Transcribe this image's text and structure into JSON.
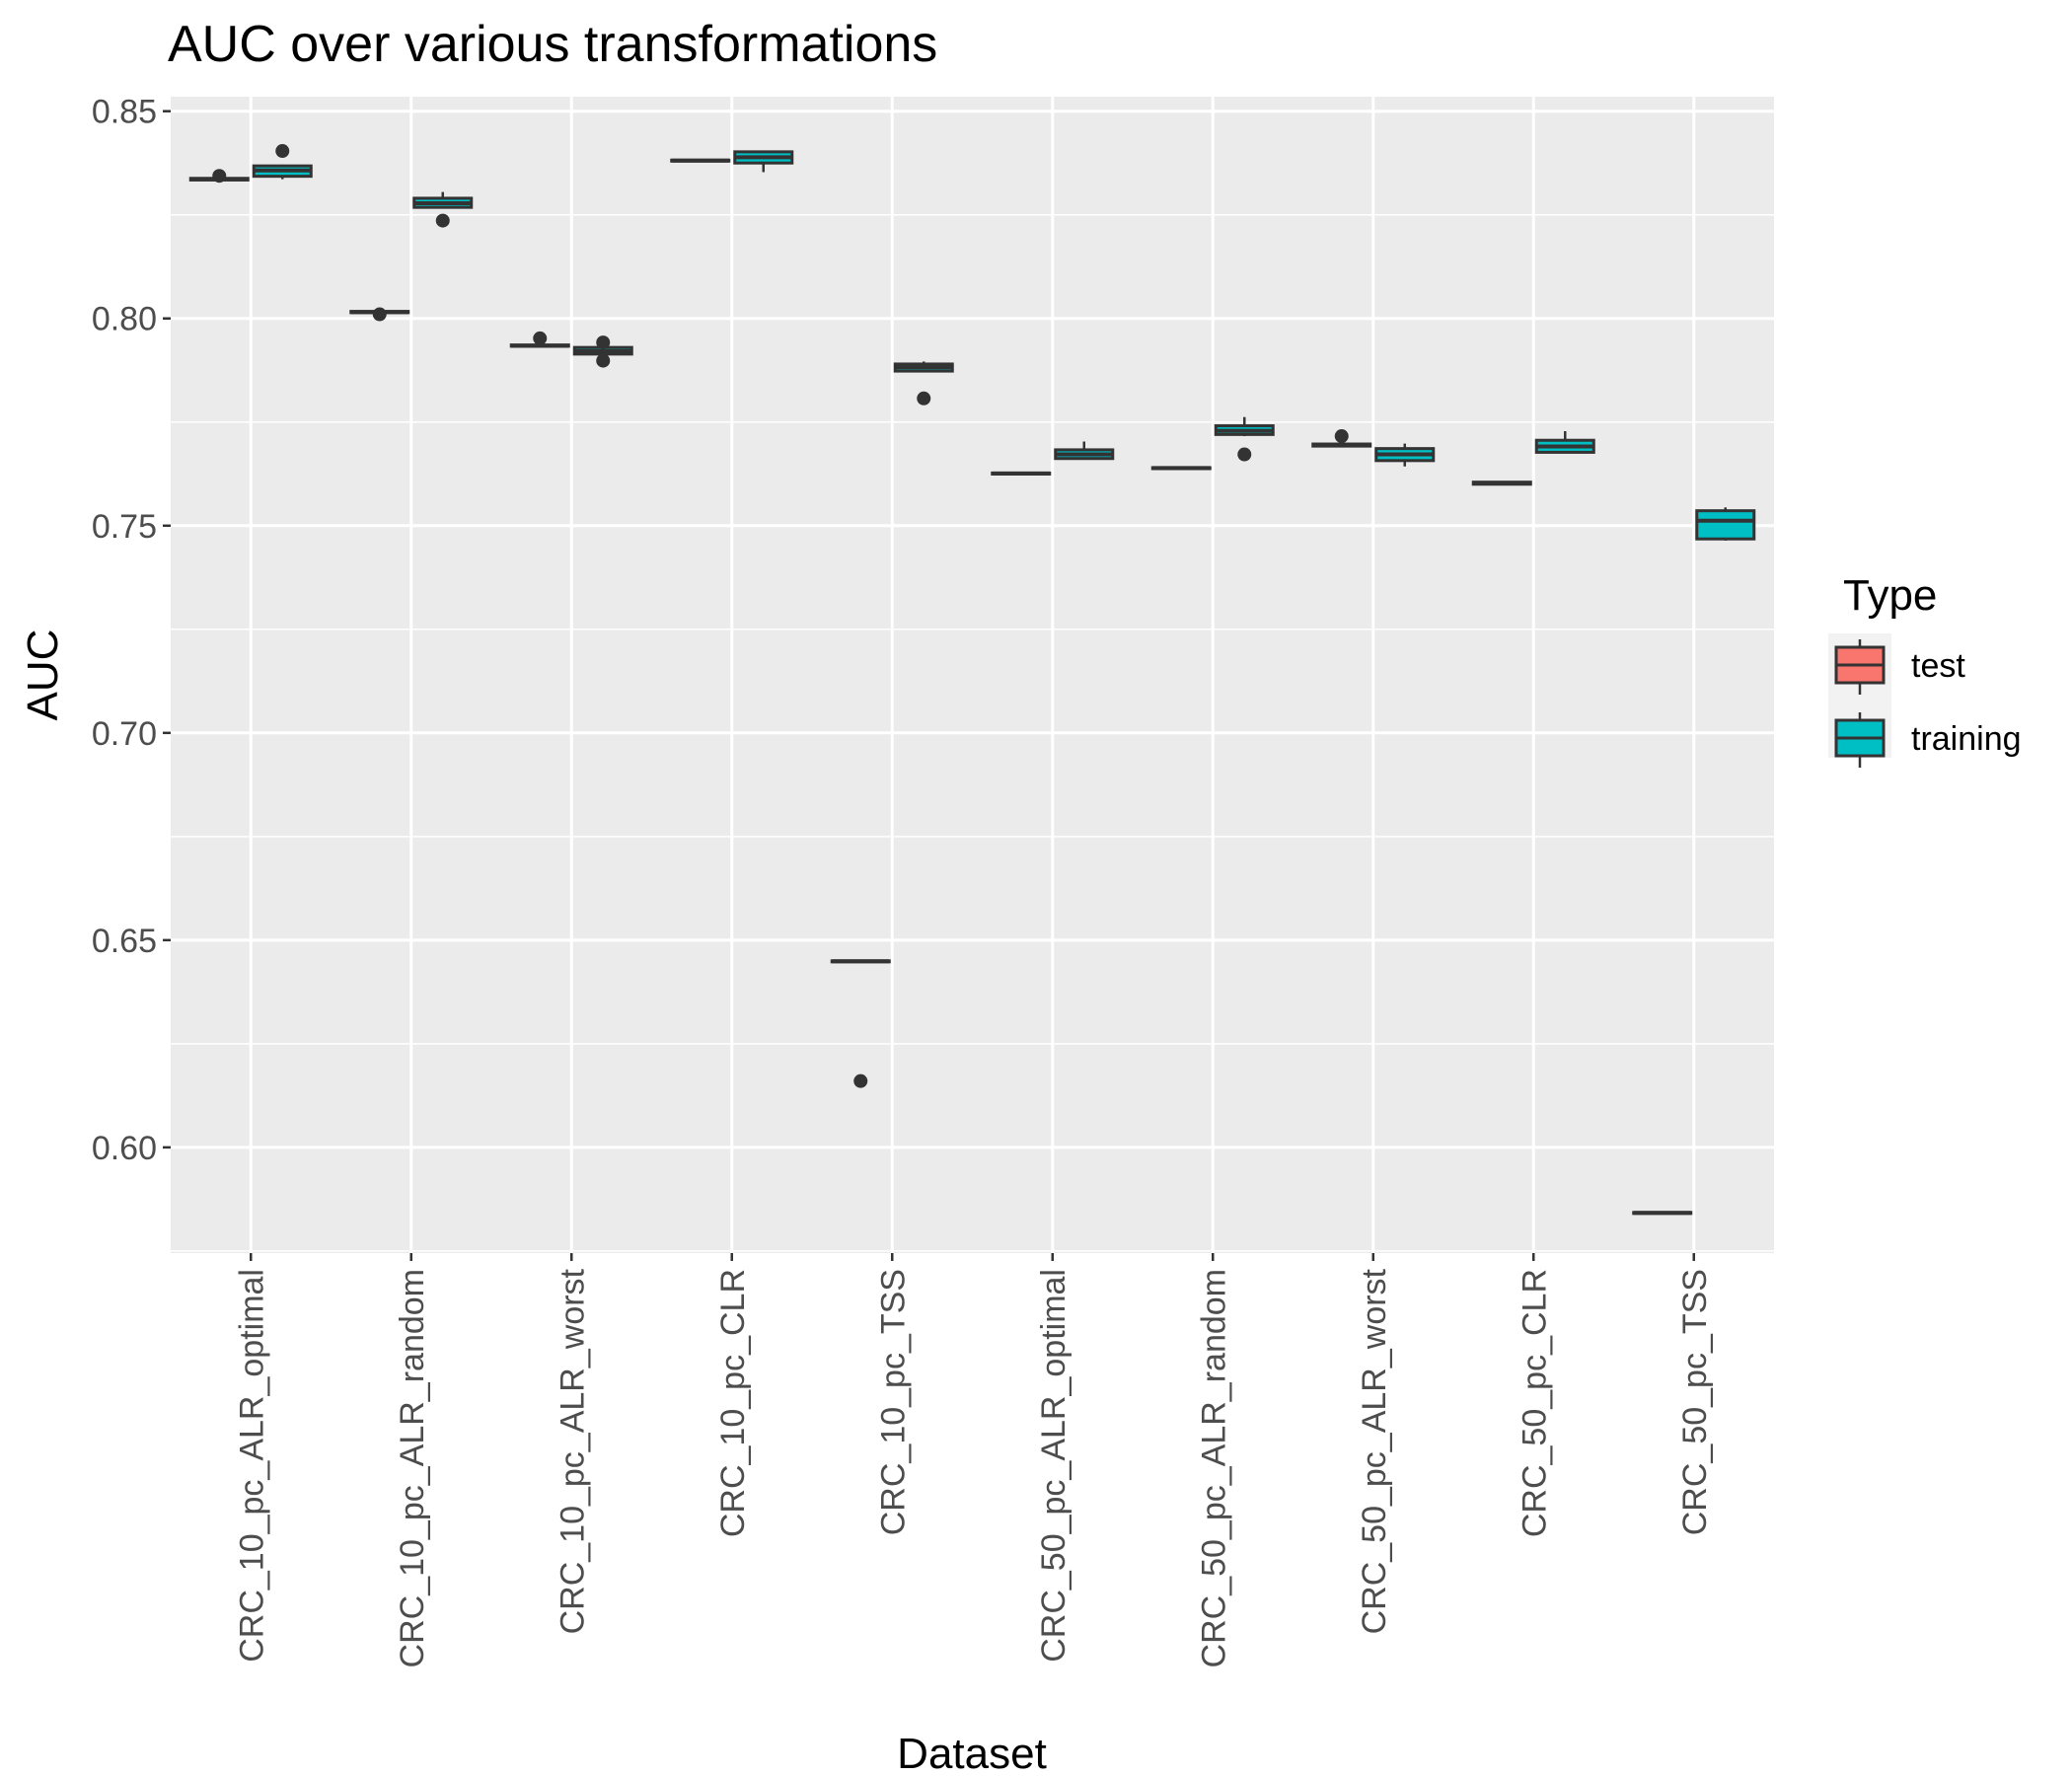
{
  "chart_data": {
    "type": "boxplot",
    "title": "AUC over various transformations",
    "xlabel": "Dataset",
    "ylabel": "AUC",
    "ylim": [
      0.5745,
      0.8535
    ],
    "yticks": [
      "0.60",
      "0.65",
      "0.70",
      "0.75",
      "0.80",
      "0.85"
    ],
    "ytick_values": [
      0.6,
      0.65,
      0.7,
      0.75,
      0.8,
      0.85
    ],
    "grid": true,
    "legend_position": "right",
    "legend_title": "Type",
    "categories": [
      "CRC_10_pc_ALR_optimal",
      "CRC_10_pc_ALR_random",
      "CRC_10_pc_ALR_worst",
      "CRC_10_pc_CLR",
      "CRC_10_pc_TSS",
      "CRC_50_pc_ALR_optimal",
      "CRC_50_pc_ALR_random",
      "CRC_50_pc_ALR_worst",
      "CRC_50_pc_CLR",
      "CRC_50_pc_TSS"
    ],
    "series": [
      {
        "name": "test",
        "color": "#F8766D",
        "boxes": [
          {
            "min": 0.8333,
            "q1": 0.8334,
            "median": 0.8336,
            "q3": 0.8338,
            "max": 0.834,
            "outliers": [
              0.8344
            ]
          },
          {
            "min": 0.8013,
            "q1": 0.8014,
            "median": 0.8015,
            "q3": 0.8017,
            "max": 0.8018,
            "outliers": [
              0.801
            ]
          },
          {
            "min": 0.7932,
            "q1": 0.7933,
            "median": 0.7934,
            "q3": 0.7936,
            "max": 0.7937,
            "outliers": [
              0.7952
            ]
          },
          {
            "min": 0.838,
            "q1": 0.838,
            "median": 0.8381,
            "q3": 0.8382,
            "max": 0.8383,
            "outliers": []
          },
          {
            "min": 0.6447,
            "q1": 0.6448,
            "median": 0.6449,
            "q3": 0.645,
            "max": 0.6451,
            "outliers": [
              0.616
            ]
          },
          {
            "min": 0.7624,
            "q1": 0.7625,
            "median": 0.7626,
            "q3": 0.7627,
            "max": 0.7628,
            "outliers": []
          },
          {
            "min": 0.7637,
            "q1": 0.7638,
            "median": 0.7639,
            "q3": 0.764,
            "max": 0.7641,
            "outliers": []
          },
          {
            "min": 0.769,
            "q1": 0.7692,
            "median": 0.7694,
            "q3": 0.7697,
            "max": 0.7699,
            "outliers": [
              0.7716
            ]
          },
          {
            "min": 0.7598,
            "q1": 0.76,
            "median": 0.7602,
            "q3": 0.7605,
            "max": 0.7607,
            "outliers": []
          },
          {
            "min": 0.584,
            "q1": 0.5841,
            "median": 0.5842,
            "q3": 0.5843,
            "max": 0.5844,
            "outliers": []
          }
        ]
      },
      {
        "name": "training",
        "color": "#00BFC4",
        "boxes": [
          {
            "min": 0.8336,
            "q1": 0.8343,
            "median": 0.8357,
            "q3": 0.8368,
            "max": 0.8371,
            "outliers": [
              0.8404
            ]
          },
          {
            "min": 0.8265,
            "q1": 0.8268,
            "median": 0.8278,
            "q3": 0.829,
            "max": 0.8305,
            "outliers": [
              0.8236
            ]
          },
          {
            "min": 0.791,
            "q1": 0.7914,
            "median": 0.7921,
            "q3": 0.793,
            "max": 0.7932,
            "outliers": [
              0.7942,
              0.7898
            ]
          },
          {
            "min": 0.8353,
            "q1": 0.8375,
            "median": 0.8389,
            "q3": 0.8402,
            "max": 0.8404,
            "outliers": []
          },
          {
            "min": 0.787,
            "q1": 0.7873,
            "median": 0.7882,
            "q3": 0.789,
            "max": 0.7896,
            "outliers": [
              0.7807
            ]
          },
          {
            "min": 0.7659,
            "q1": 0.7662,
            "median": 0.7672,
            "q3": 0.7683,
            "max": 0.7703,
            "outliers": []
          },
          {
            "min": 0.7716,
            "q1": 0.772,
            "median": 0.7729,
            "q3": 0.7741,
            "max": 0.7762,
            "outliers": [
              0.7672
            ]
          },
          {
            "min": 0.7643,
            "q1": 0.7657,
            "median": 0.7672,
            "q3": 0.7686,
            "max": 0.7698,
            "outliers": []
          },
          {
            "min": 0.7676,
            "q1": 0.7677,
            "median": 0.7691,
            "q3": 0.7706,
            "max": 0.7728,
            "outliers": []
          },
          {
            "min": 0.7464,
            "q1": 0.7468,
            "median": 0.7512,
            "q3": 0.7536,
            "max": 0.7544,
            "outliers": []
          }
        ]
      }
    ]
  }
}
